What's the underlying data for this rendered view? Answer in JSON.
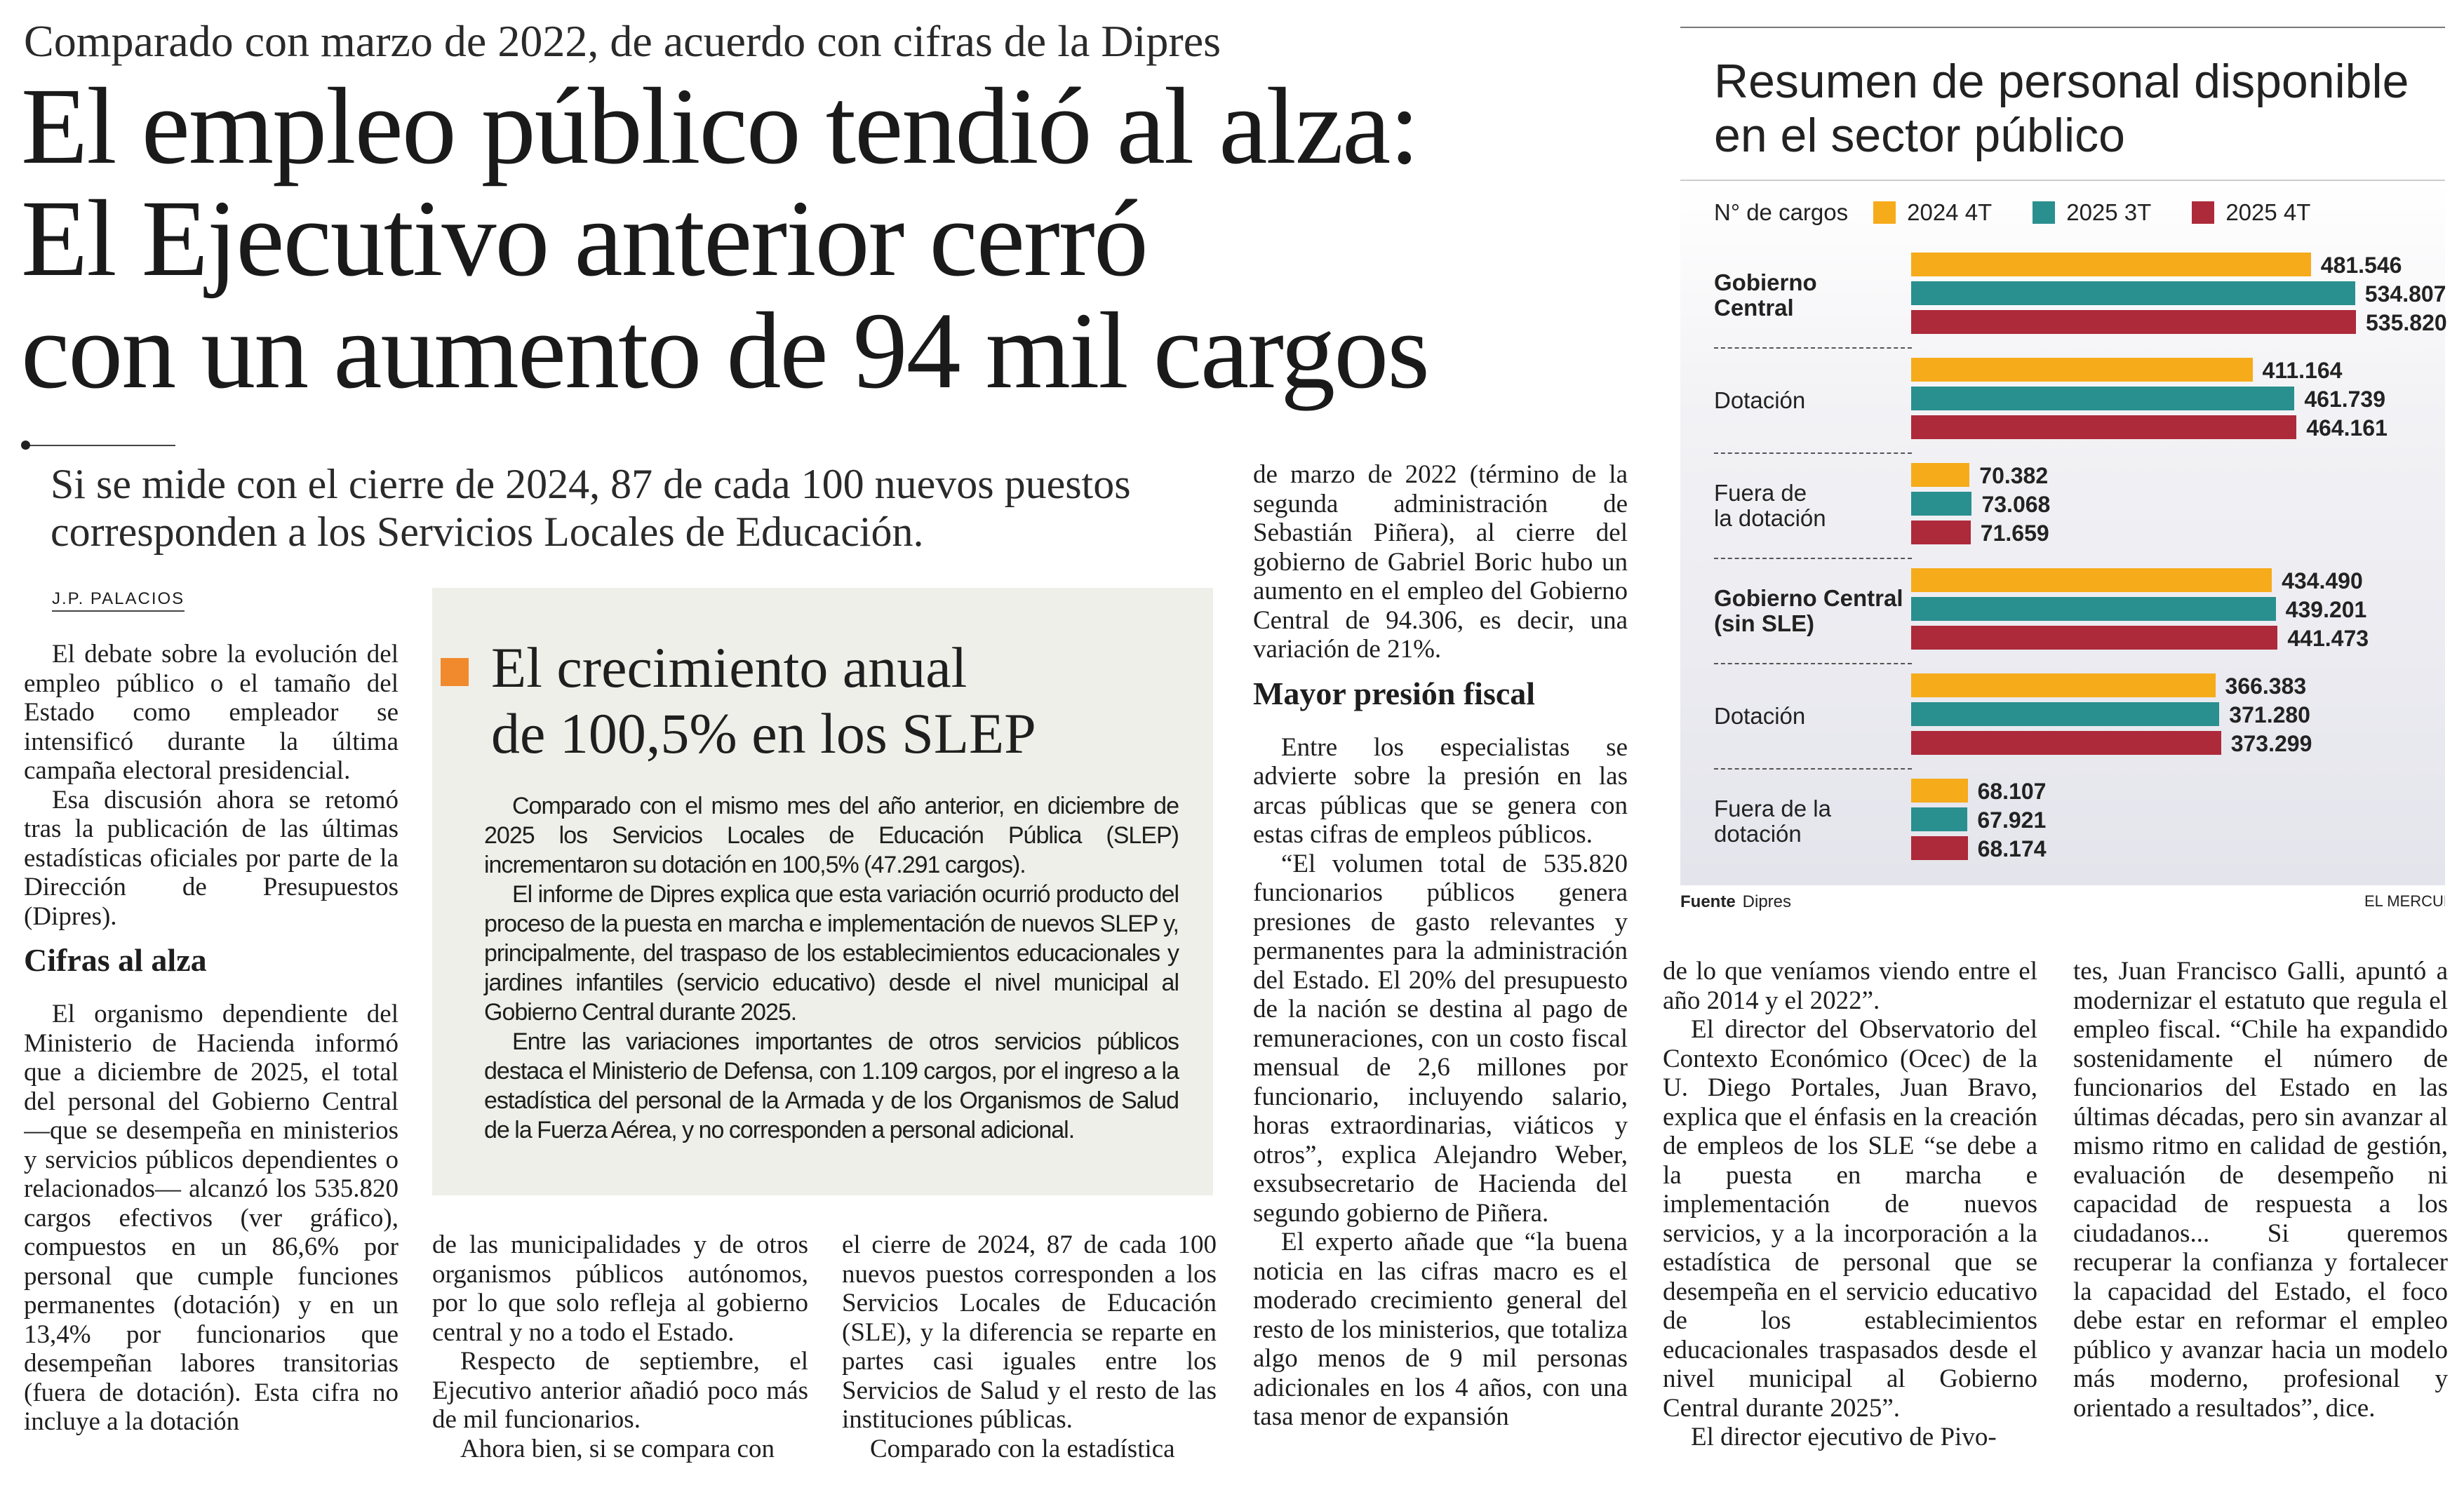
{
  "kicker": "Comparado con marzo de 2022, de acuerdo con cifras de la Dipres",
  "headline": [
    "El empleo público tendió al alza:",
    "El Ejecutivo anterior cerró",
    "con un aumento de 94 mil cargos"
  ],
  "deck": "Si se mide con el cierre de 2024, 87 de cada 100 nuevos puestos corresponden a los Servicios Locales de Educación.",
  "byline": "J.P. PALACIOS",
  "col1": {
    "p1": "El debate sobre la evolución del empleo público o el tamaño del Estado como empleador se intensificó durante la última campaña electoral presidencial.",
    "p2": "Esa discusión ahora se retomó tras la publicación de las últimas estadísticas oficiales por parte de la Dirección de Presupuestos (Dipres).",
    "heading": "Cifras al alza",
    "p3": "El organismo dependiente del Ministerio de Hacienda informó que a diciembre de 2025, el total del personal del Gobierno Central —que se desempeña en ministerios y servicios públicos dependientes o relacionados— alcanzó los 535.820 cargos efectivos (ver gráfico), compuestos en un 86,6% por personal que cumple funciones permanentes (dotación) y en un 13,4% por funcionarios que desempeñan labores transitorias (fuera de dotación). Esta cifra no incluye a la dotación"
  },
  "col2": {
    "p1": "de las municipalidades y de otros organismos públicos autónomos, por lo que solo refleja al gobierno central y no a todo el Estado.",
    "p2": "Respecto de septiembre, el Ejecutivo anterior añadió poco más de mil funcionarios.",
    "p3": "Ahora bien, si se compara con"
  },
  "col3": {
    "p1": "el cierre de 2024, 87 de cada 100 nuevos puestos corresponden a los Servicios Locales de Educación (SLE), y la diferencia se reparte en partes casi iguales entre los Servicios de Salud y el resto de las instituciones públicas.",
    "p2": "Comparado con la estadística"
  },
  "col3a": {
    "p1": "de marzo de 2022 (término de la segunda administración de Sebastián Piñera), al cierre del gobierno de Gabriel Boric hubo un aumento en el empleo del Gobierno Central de 94.306, es decir, una variación de 21%.",
    "heading": "Mayor presión fiscal",
    "p2": "Entre los especialistas se advierte sobre la presión en las arcas públicas que se genera con estas cifras de empleos públicos.",
    "p3": "“El volumen total de 535.820 funcionarios públicos genera presiones de gasto relevantes y permanentes para la administración del Estado. El 20% del presupuesto de la nación se destina al pago de remuneraciones, con un costo fiscal mensual de 2,6 millones por funcionario, incluyendo salario, horas extraordinarias, viáticos y otros”, explica Alejandro Weber, exsubsecretario de Hacienda del segundo gobierno de Piñera.",
    "p4": "El experto añade que “la buena noticia en las cifras macro es el moderado crecimiento general del resto de los ministerios, que totaliza algo menos de 9 mil personas adicionales en los 4 años, con una tasa menor de expansión"
  },
  "col4": {
    "p1": "de lo que veníamos viendo entre el año 2014 y el 2022”.",
    "p2": "El director del Observatorio del Contexto Económico (Ocec) de la U. Diego Portales, Juan Bravo, explica que el énfasis en la creación de empleos de los SLE “se debe a la puesta en marcha e implementación de nuevos servicios, y a la incorporación a la estadística de personal que se desempeña en el servicio educativo de los establecimientos educacionales traspasados desde el nivel municipal al Gobierno Central durante 2025”.",
    "p3": "El director ejecutivo de Pivo-"
  },
  "col5": {
    "p1": "tes, Juan Francisco Galli, apuntó a modernizar el estatuto que regula el empleo fiscal. “Chile ha expandido sostenidamente el número de funcionarios del Estado en las últimas décadas, pero sin avanzar al mismo ritmo en calidad de gestión, evaluación de desempeño ni capacidad de respuesta a los ciudadanos... Si queremos recuperar la confianza y fortalecer la capacidad del Estado, el foco debe estar en reformar el empleo público y avanzar hacia un modelo más moderno, profesional y orientado a resultados”, dice."
  },
  "box": {
    "accent_color": "#f08a2c",
    "title": [
      "El crecimiento anual",
      "de 100,5% en los SLEP"
    ],
    "p1": "Comparado con el mismo mes del año anterior, en diciembre de 2025 los Servicios Locales de Educación Pública (SLEP) incrementaron su dotación en 100,5% (47.291 cargos).",
    "p2": "El informe de Dipres explica que esta variación ocurrió producto del proceso de la puesta en marcha e implementación de nuevos SLEP y, principalmente, del traspaso de los establecimientos educacionales y jardines infantiles (servicio educativo) desde el nivel municipal al Gobierno Central durante 2025.",
    "p3": "Entre las variaciones importantes de otros servicios públicos destaca el Ministerio de Defensa, con 1.109 cargos, por el ingreso a la estadística del personal de la Armada y de los Organismos de Salud de la Fuerza Aérea, y no corresponden a personal adicional."
  },
  "chart_data": {
    "type": "bar",
    "orientation": "horizontal",
    "title": "Resumen de personal disponible en el sector público",
    "title_lines": [
      "Resumen de personal disponible",
      "en el sector público"
    ],
    "legend_title": "N° de cargos",
    "legend_placement": "top",
    "grid": false,
    "categories": [
      "Gobierno Central",
      "Dotación",
      "Fuera de la dotación",
      "Gobierno Central (sin SLE)",
      "Dotación",
      "Fuera de la dotación"
    ],
    "category_lines": [
      [
        "Gobierno",
        "Central"
      ],
      [
        "Dotación"
      ],
      [
        "Fuera de",
        "la dotación"
      ],
      [
        "Gobierno Central",
        "(sin SLE)"
      ],
      [
        "Dotación"
      ],
      [
        "Fuera de la",
        "dotación"
      ]
    ],
    "category_bold": [
      true,
      false,
      false,
      true,
      false,
      false
    ],
    "series": [
      {
        "name": "2024 4T",
        "color": "#f6ab1b",
        "values": [
          481546,
          411164,
          70382,
          434490,
          366383,
          68107
        ],
        "labels": [
          "481.546",
          "411.164",
          "70.382",
          "434.490",
          "366.383",
          "68.107"
        ]
      },
      {
        "name": "2025 3T",
        "color": "#2a8f8f",
        "values": [
          534807,
          461739,
          73068,
          439201,
          371280,
          67921
        ],
        "labels": [
          "534.807",
          "461.739",
          "73.068",
          "439.201",
          "371.280",
          "67.921"
        ]
      },
      {
        "name": "2025 4T",
        "color": "#ad2a3a",
        "values": [
          535820,
          464161,
          71659,
          441473,
          373299,
          68174
        ],
        "labels": [
          "535.820",
          "464.161",
          "71.659",
          "441.473",
          "373.299",
          "68.174"
        ]
      }
    ],
    "source_label": "Fuente",
    "source": "Dipres",
    "credit": "EL MERCUR"
  }
}
